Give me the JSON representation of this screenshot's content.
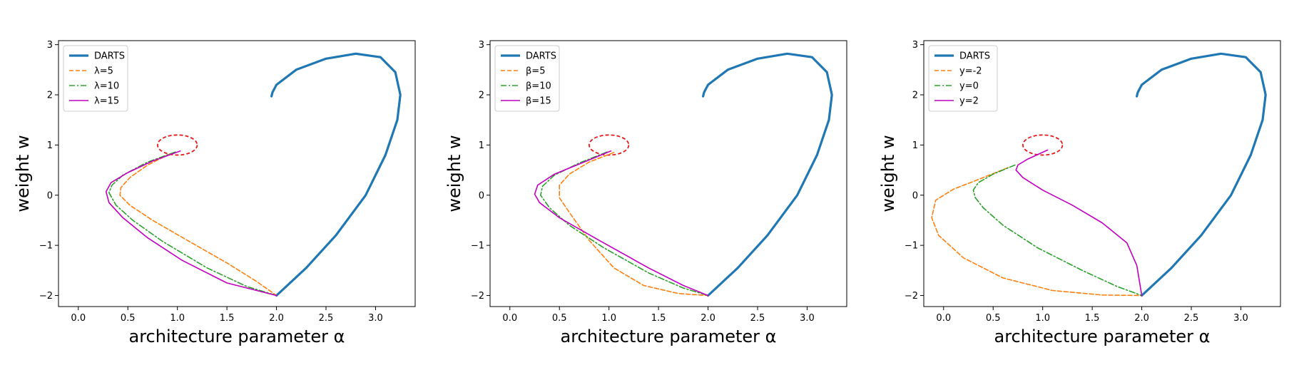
{
  "chart_data": [
    {
      "type": "line",
      "xlabel": "architecture parameter α",
      "ylabel": "weight w",
      "xlim": [
        -0.2,
        3.4
      ],
      "ylim": [
        -2.22,
        3.08
      ],
      "xticks": [
        0.0,
        0.5,
        1.0,
        1.5,
        2.0,
        2.5,
        3.0
      ],
      "xtick_labels": [
        "0.0",
        "0.5",
        "1.0",
        "1.5",
        "2.0",
        "2.5",
        "3.0"
      ],
      "yticks": [
        -2,
        -1,
        0,
        1,
        2,
        3
      ],
      "ytick_labels": [
        "−2",
        "−1",
        "0",
        "1",
        "2",
        "3"
      ],
      "grid": false,
      "legend": "top-left",
      "circle": {
        "center": [
          1.0,
          1.0
        ],
        "rx": 0.2,
        "ry": 0.2,
        "color": "#e41a1c",
        "style": "dashed"
      },
      "series": [
        {
          "name": "DARTS",
          "color": "#1f77b4",
          "style": "solid",
          "width": 3.2,
          "x": [
            1.95,
            1.96,
            2.0,
            2.2,
            2.5,
            2.8,
            3.05,
            3.2,
            3.25,
            3.22,
            3.1,
            2.9,
            2.6,
            2.3,
            2.0
          ],
          "y": [
            1.97,
            2.05,
            2.2,
            2.5,
            2.72,
            2.82,
            2.75,
            2.45,
            2.0,
            1.5,
            0.8,
            0.0,
            -0.8,
            -1.45,
            -2.0
          ]
        },
        {
          "name": "λ=5",
          "color": "#ff7f0e",
          "style": "dashed",
          "width": 1.6,
          "x": [
            0.92,
            0.7,
            0.52,
            0.43,
            0.42,
            0.52,
            0.75,
            1.1,
            1.5,
            1.8,
            2.0
          ],
          "y": [
            0.82,
            0.6,
            0.35,
            0.15,
            0.0,
            -0.2,
            -0.5,
            -0.9,
            -1.35,
            -1.72,
            -2.0
          ],
          "endpoint": [
            2.0,
            -2.0
          ]
        },
        {
          "name": "λ=10",
          "color": "#2ca02c",
          "style": "dashdot",
          "width": 1.6,
          "x": [
            0.98,
            0.7,
            0.45,
            0.34,
            0.31,
            0.38,
            0.55,
            0.85,
            1.3,
            1.7,
            2.0
          ],
          "y": [
            0.86,
            0.66,
            0.4,
            0.2,
            0.05,
            -0.2,
            -0.5,
            -0.92,
            -1.45,
            -1.82,
            -2.0
          ]
        },
        {
          "name": "λ=15",
          "color": "#bf00bf",
          "style": "solid",
          "width": 1.6,
          "x": [
            1.03,
            0.75,
            0.5,
            0.33,
            0.28,
            0.31,
            0.45,
            0.7,
            1.05,
            1.5,
            2.0
          ],
          "y": [
            0.88,
            0.68,
            0.45,
            0.25,
            0.07,
            -0.15,
            -0.45,
            -0.85,
            -1.3,
            -1.75,
            -2.0
          ]
        }
      ]
    },
    {
      "type": "line",
      "xlabel": "architecture parameter α",
      "ylabel": "weight w",
      "xlim": [
        -0.2,
        3.4
      ],
      "ylim": [
        -2.22,
        3.08
      ],
      "xticks": [
        0.0,
        0.5,
        1.0,
        1.5,
        2.0,
        2.5,
        3.0
      ],
      "xtick_labels": [
        "0.0",
        "0.5",
        "1.0",
        "1.5",
        "2.0",
        "2.5",
        "3.0"
      ],
      "yticks": [
        -2,
        -1,
        0,
        1,
        2,
        3
      ],
      "ytick_labels": [
        "−2",
        "−1",
        "0",
        "1",
        "2",
        "3"
      ],
      "grid": false,
      "legend": "top-left",
      "circle": {
        "center": [
          1.0,
          1.0
        ],
        "rx": 0.2,
        "ry": 0.2,
        "color": "#e41a1c",
        "style": "dashed"
      },
      "series": [
        {
          "name": "DARTS",
          "color": "#1f77b4",
          "style": "solid",
          "width": 3.2,
          "x": [
            1.95,
            1.96,
            2.0,
            2.2,
            2.5,
            2.8,
            3.05,
            3.2,
            3.25,
            3.22,
            3.1,
            2.9,
            2.6,
            2.3,
            2.0
          ],
          "y": [
            1.97,
            2.05,
            2.2,
            2.5,
            2.72,
            2.82,
            2.75,
            2.45,
            2.0,
            1.5,
            0.8,
            0.0,
            -0.8,
            -1.45,
            -2.0
          ]
        },
        {
          "name": "β=5",
          "color": "#ff7f0e",
          "style": "dashed",
          "width": 1.6,
          "x": [
            1.05,
            0.8,
            0.6,
            0.5,
            0.5,
            0.62,
            0.8,
            1.05,
            1.35,
            1.7,
            2.0
          ],
          "y": [
            0.85,
            0.66,
            0.42,
            0.2,
            -0.05,
            -0.4,
            -0.9,
            -1.45,
            -1.8,
            -1.96,
            -2.0
          ]
        },
        {
          "name": "β=10",
          "color": "#2ca02c",
          "style": "dashdot",
          "width": 1.6,
          "x": [
            0.98,
            0.7,
            0.45,
            0.33,
            0.31,
            0.4,
            0.6,
            0.95,
            1.4,
            1.75,
            2.0
          ],
          "y": [
            0.86,
            0.64,
            0.4,
            0.18,
            0.0,
            -0.25,
            -0.6,
            -1.05,
            -1.55,
            -1.85,
            -2.0
          ]
        },
        {
          "name": "β=15",
          "color": "#bf00bf",
          "style": "solid",
          "width": 1.6,
          "x": [
            1.02,
            0.75,
            0.45,
            0.28,
            0.25,
            0.3,
            0.5,
            0.9,
            1.4,
            1.75,
            2.0
          ],
          "y": [
            0.88,
            0.66,
            0.42,
            0.2,
            0.02,
            -0.15,
            -0.45,
            -0.9,
            -1.45,
            -1.8,
            -2.0
          ]
        }
      ]
    },
    {
      "type": "line",
      "xlabel": "architecture parameter α",
      "ylabel": "weight w",
      "xlim": [
        -0.2,
        3.4
      ],
      "ylim": [
        -2.22,
        3.08
      ],
      "xticks": [
        0.0,
        0.5,
        1.0,
        1.5,
        2.0,
        2.5,
        3.0
      ],
      "xtick_labels": [
        "0.0",
        "0.5",
        "1.0",
        "1.5",
        "2.0",
        "2.5",
        "3.0"
      ],
      "yticks": [
        -2,
        -1,
        0,
        1,
        2,
        3
      ],
      "ytick_labels": [
        "−2",
        "−1",
        "0",
        "1",
        "2",
        "3"
      ],
      "grid": false,
      "legend": "top-left",
      "circle": {
        "center": [
          1.0,
          1.0
        ],
        "rx": 0.2,
        "ry": 0.2,
        "color": "#e41a1c",
        "style": "dashed"
      },
      "series": [
        {
          "name": "DARTS",
          "color": "#1f77b4",
          "style": "solid",
          "width": 3.2,
          "x": [
            1.95,
            1.96,
            2.0,
            2.2,
            2.5,
            2.8,
            3.05,
            3.2,
            3.25,
            3.22,
            3.1,
            2.9,
            2.6,
            2.3,
            2.0
          ],
          "y": [
            1.97,
            2.05,
            2.2,
            2.5,
            2.72,
            2.82,
            2.75,
            2.45,
            2.0,
            1.5,
            0.8,
            0.0,
            -0.8,
            -1.45,
            -2.0
          ]
        },
        {
          "name": "y=-2",
          "color": "#ff7f0e",
          "style": "dashed",
          "width": 1.6,
          "x": [
            0.65,
            0.4,
            0.1,
            -0.08,
            -0.12,
            -0.05,
            0.2,
            0.6,
            1.1,
            1.6,
            2.0
          ],
          "y": [
            0.55,
            0.35,
            0.12,
            -0.1,
            -0.45,
            -0.8,
            -1.25,
            -1.65,
            -1.9,
            -1.99,
            -2.0
          ]
        },
        {
          "name": "y=0",
          "color": "#2ca02c",
          "style": "dashdot",
          "width": 1.6,
          "x": [
            0.72,
            0.5,
            0.35,
            0.3,
            0.32,
            0.4,
            0.6,
            0.95,
            1.4,
            1.75,
            2.0
          ],
          "y": [
            0.6,
            0.42,
            0.25,
            0.1,
            -0.05,
            -0.25,
            -0.6,
            -1.05,
            -1.5,
            -1.82,
            -2.0
          ]
        },
        {
          "name": "y=2",
          "color": "#bf00bf",
          "style": "solid",
          "width": 1.6,
          "x": [
            1.05,
            0.85,
            0.75,
            0.73,
            0.8,
            1.0,
            1.3,
            1.6,
            1.85,
            1.95,
            2.0
          ],
          "y": [
            0.9,
            0.72,
            0.6,
            0.5,
            0.35,
            0.1,
            -0.2,
            -0.55,
            -0.95,
            -1.4,
            -2.0
          ]
        }
      ]
    }
  ]
}
